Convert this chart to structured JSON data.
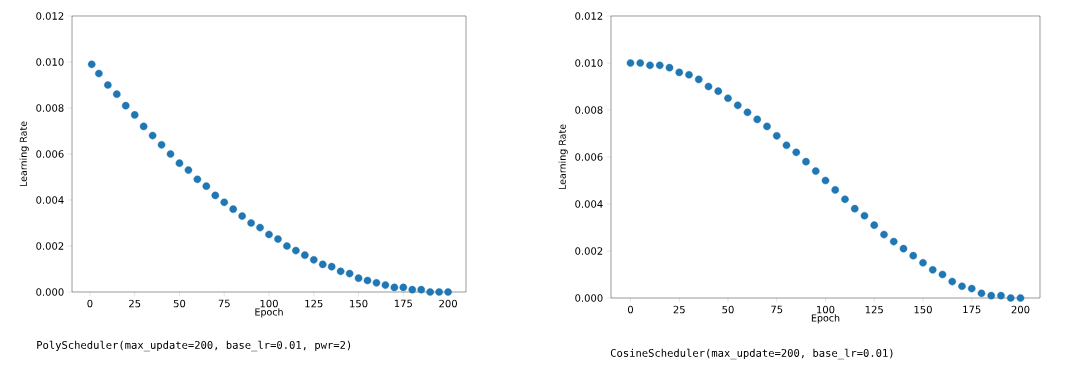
{
  "chart_data": [
    {
      "type": "scatter",
      "xlabel": "Epoch",
      "ylabel": "Learning Rate",
      "marker": "circle",
      "xlim": [
        -10,
        210
      ],
      "ylim": [
        0,
        0.012
      ],
      "xticks": [
        0,
        25,
        50,
        75,
        100,
        125,
        150,
        175,
        200
      ],
      "yticks": [
        {
          "value": 0,
          "label": "0.000"
        },
        {
          "value": 0.002,
          "label": "0.002"
        },
        {
          "value": 0.004,
          "label": "0.004"
        },
        {
          "value": 0.006,
          "label": "0.006"
        },
        {
          "value": 0.008,
          "label": "0.008"
        },
        {
          "value": 0.01,
          "label": "0.010"
        },
        {
          "value": 0.012,
          "label": "0.012"
        }
      ],
      "series": [
        {
          "color": "#1f77b4",
          "x": [
            1,
            5,
            10,
            15,
            20,
            25,
            30,
            35,
            40,
            45,
            50,
            55,
            60,
            65,
            70,
            75,
            80,
            85,
            90,
            95,
            100,
            105,
            110,
            115,
            120,
            125,
            130,
            135,
            140,
            145,
            150,
            155,
            160,
            165,
            170,
            175,
            180,
            185,
            190,
            195,
            200
          ],
          "values": [
            0.0099,
            0.0095,
            0.009,
            0.0086,
            0.0081,
            0.0077,
            0.0072,
            0.0068,
            0.0064,
            0.006,
            0.0056,
            0.0053,
            0.0049,
            0.0046,
            0.0042,
            0.0039,
            0.0036,
            0.0033,
            0.003,
            0.0028,
            0.0025,
            0.0023,
            0.002,
            0.0018,
            0.0016,
            0.0014,
            0.0012,
            0.0011,
            0.0009,
            0.0008,
            0.0006,
            0.0005,
            0.0004,
            0.0003,
            0.0002,
            0.0002,
            0.0001,
            0.0001,
            0.0,
            0.0,
            0.0
          ]
        }
      ],
      "annotations": [
        "PolyScheduler(max_update=200, base_lr=0.01, pwr=2)"
      ]
    },
    {
      "type": "scatter",
      "xlabel": "Epoch",
      "ylabel": "Learning Rate",
      "marker": "circle",
      "xlim": [
        -10,
        210
      ],
      "ylim": [
        0,
        0.012
      ],
      "xticks": [
        0,
        25,
        50,
        75,
        100,
        125,
        150,
        175,
        200
      ],
      "yticks": [
        {
          "value": 0,
          "label": "0.000"
        },
        {
          "value": 0.002,
          "label": "0.002"
        },
        {
          "value": 0.004,
          "label": "0.004"
        },
        {
          "value": 0.006,
          "label": "0.006"
        },
        {
          "value": 0.008,
          "label": "0.008"
        },
        {
          "value": 0.01,
          "label": "0.010"
        },
        {
          "value": 0.012,
          "label": "0.012"
        }
      ],
      "series": [
        {
          "color": "#1f77b4",
          "x": [
            0,
            5,
            10,
            15,
            20,
            25,
            30,
            35,
            40,
            45,
            50,
            55,
            60,
            65,
            70,
            75,
            80,
            85,
            90,
            95,
            100,
            105,
            110,
            115,
            120,
            125,
            130,
            135,
            140,
            145,
            150,
            155,
            160,
            165,
            170,
            175,
            180,
            185,
            190,
            195,
            200
          ],
          "values": [
            0.01,
            0.01,
            0.0099,
            0.0099,
            0.0098,
            0.0096,
            0.0095,
            0.0093,
            0.009,
            0.0088,
            0.0085,
            0.0082,
            0.0079,
            0.0076,
            0.0073,
            0.0069,
            0.0065,
            0.0062,
            0.0058,
            0.0054,
            0.005,
            0.0046,
            0.0042,
            0.0038,
            0.0035,
            0.0031,
            0.0027,
            0.0024,
            0.0021,
            0.0018,
            0.0015,
            0.0012,
            0.001,
            0.0007,
            0.0005,
            0.0004,
            0.0002,
            0.0001,
            0.0001,
            0.0,
            0.0
          ]
        }
      ],
      "annotations": [
        "CosineScheduler(max_update=200, base_lr=0.01)"
      ]
    }
  ]
}
